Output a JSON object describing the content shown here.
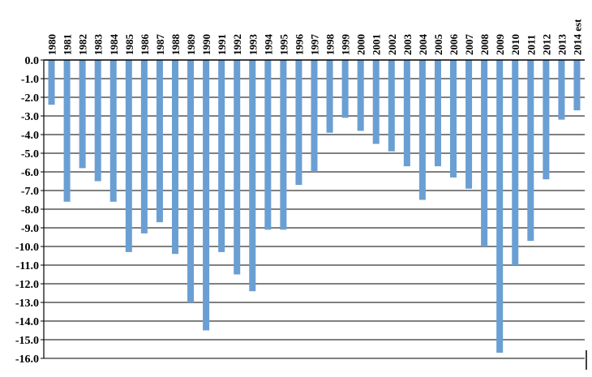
{
  "chart_data": {
    "type": "bar",
    "title": "",
    "xlabel": "",
    "ylabel": "",
    "categories": [
      "1980",
      "1981",
      "1982",
      "1983",
      "1984",
      "1985",
      "1986",
      "1987",
      "1988",
      "1989",
      "1990",
      "1991",
      "1992",
      "1993",
      "1994",
      "1995",
      "1996",
      "1997",
      "1998",
      "1999",
      "2000",
      "2001",
      "2002",
      "2003",
      "2004",
      "2005",
      "2006",
      "2007",
      "2008",
      "2009",
      "2010",
      "2011",
      "2012",
      "2013",
      "2014 est"
    ],
    "values": [
      -2.4,
      -7.6,
      -5.8,
      -6.5,
      -7.6,
      -10.3,
      -9.3,
      -8.7,
      -10.4,
      -13.0,
      -14.5,
      -10.3,
      -11.5,
      -12.4,
      -9.1,
      -9.1,
      -6.7,
      -6.0,
      -3.9,
      -3.1,
      -3.8,
      -4.5,
      -4.9,
      -5.7,
      -7.5,
      -5.7,
      -6.3,
      -6.9,
      -10.0,
      -15.7,
      -11.0,
      -9.7,
      -6.4,
      -3.2,
      -2.7
    ],
    "ylim": [
      -16.0,
      0.0
    ],
    "yticks": [
      "0.0",
      "-1.0",
      "-2.0",
      "-3.0",
      "-4.0",
      "-5.0",
      "-6.0",
      "-7.0",
      "-8.0",
      "-9.0",
      "-10.0",
      "-11.0",
      "-12.0",
      "-13.0",
      "-14.0",
      "-15.0",
      "-16.0"
    ],
    "grid": true,
    "legend": "none",
    "bar_color": "#6a9fd3",
    "axis_color": "#000000"
  }
}
